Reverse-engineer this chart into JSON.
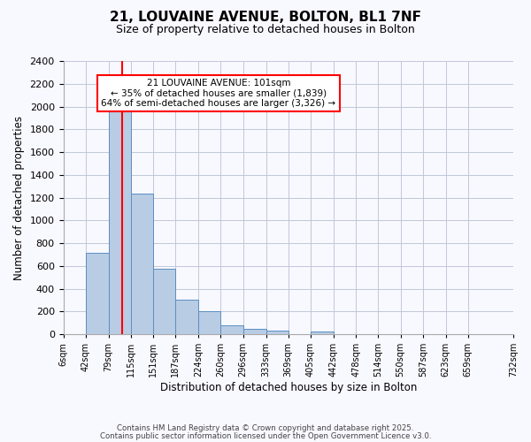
{
  "title1": "21, LOUVAINE AVENUE, BOLTON, BL1 7NF",
  "title2": "Size of property relative to detached houses in Bolton",
  "xlabel": "Distribution of detached houses by size in Bolton",
  "ylabel": "Number of detached properties",
  "bar_values": [
    0,
    715,
    1960,
    1235,
    575,
    305,
    200,
    80,
    45,
    35,
    0,
    20,
    0,
    0,
    0,
    0,
    0,
    0,
    0
  ],
  "bin_edges": [
    6,
    42,
    79,
    115,
    151,
    187,
    224,
    260,
    296,
    333,
    369,
    405,
    442,
    478,
    514,
    550,
    587,
    623,
    659,
    732
  ],
  "tick_labels": [
    "6sqm",
    "42sqm",
    "79sqm",
    "115sqm",
    "151sqm",
    "187sqm",
    "224sqm",
    "260sqm",
    "296sqm",
    "333sqm",
    "369sqm",
    "405sqm",
    "442sqm",
    "478sqm",
    "514sqm",
    "550sqm",
    "587sqm",
    "623sqm",
    "659sqm",
    "732sqm"
  ],
  "bar_color": "#b8cce4",
  "bar_edge_color": "#5a8fc2",
  "vline_x": 101,
  "vline_color": "red",
  "ylim": [
    0,
    2400
  ],
  "yticks": [
    0,
    200,
    400,
    600,
    800,
    1000,
    1200,
    1400,
    1600,
    1800,
    2000,
    2200,
    2400
  ],
  "annotation_title": "21 LOUVAINE AVENUE: 101sqm",
  "annotation_line1": "← 35% of detached houses are smaller (1,839)",
  "annotation_line2": "64% of semi-detached houses are larger (3,326) →",
  "annotation_box_color": "white",
  "annotation_box_edge_color": "red",
  "footer1": "Contains HM Land Registry data © Crown copyright and database right 2025.",
  "footer2": "Contains public sector information licensed under the Open Government Licence v3.0.",
  "bg_color": "#f8f8ff",
  "grid_color": "#c0c8d8"
}
